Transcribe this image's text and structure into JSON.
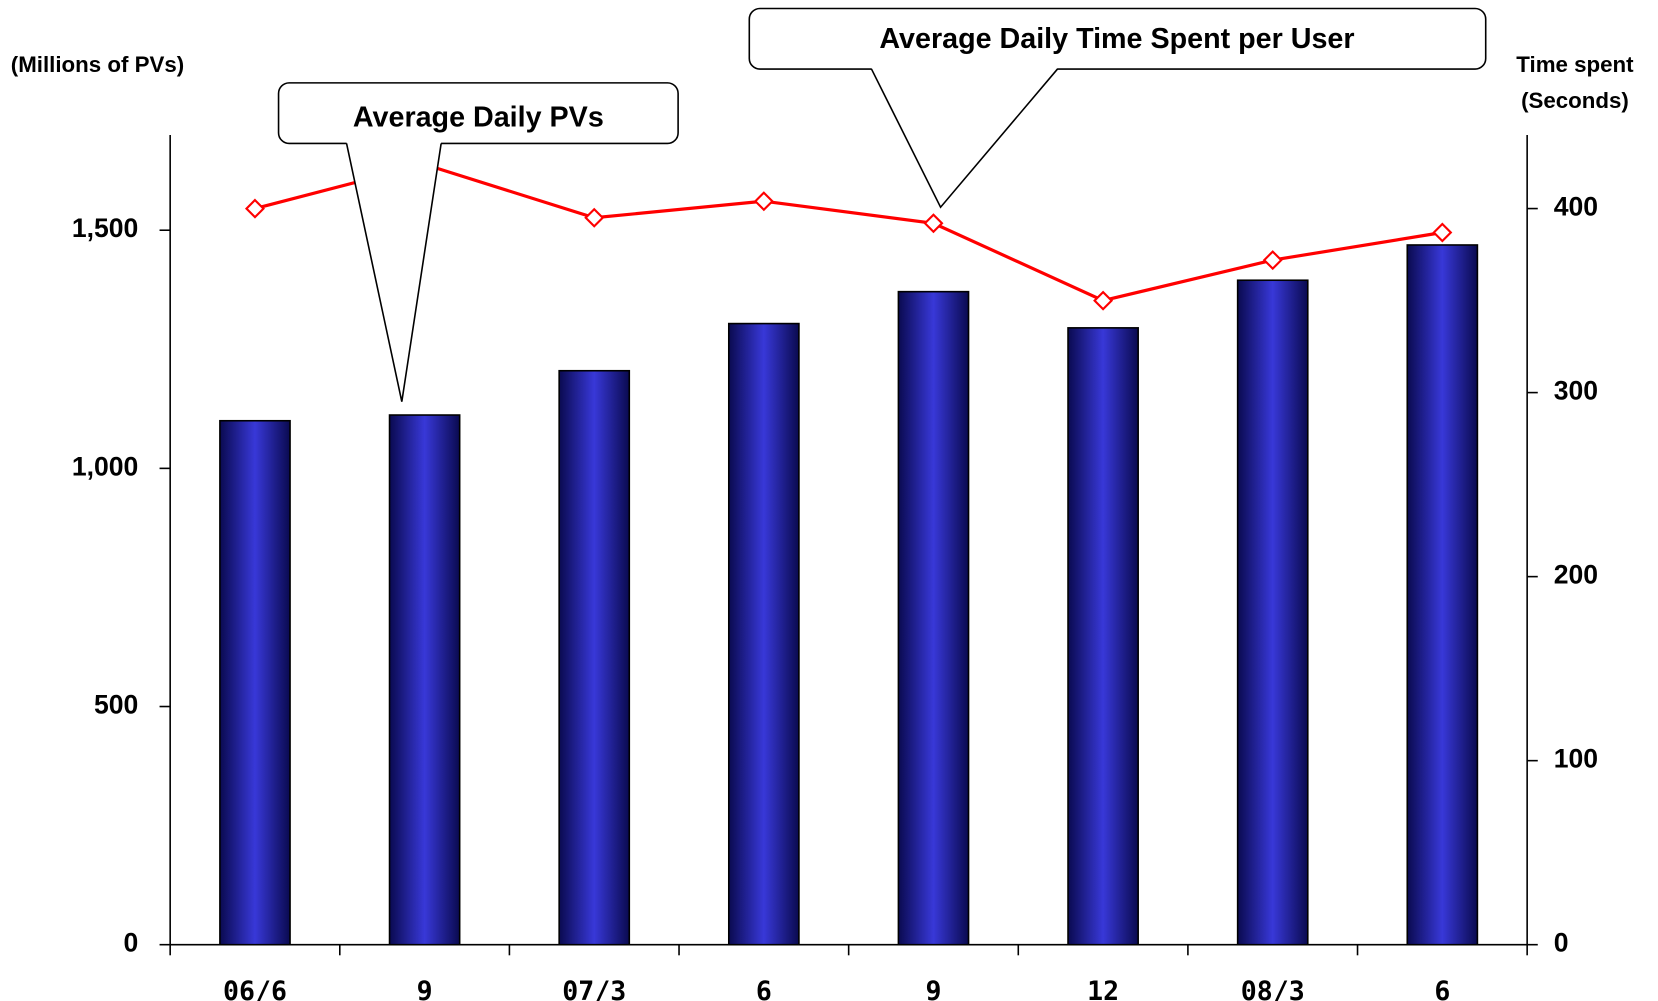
{
  "chart_data": {
    "type": "bar_line",
    "ylabel": "(Millions of PVs)",
    "y2label": [
      "Time spent",
      "(Seconds)"
    ],
    "annotations": [
      {
        "text": "Average Daily PVs"
      },
      {
        "text": "Average Daily Time Spent per User"
      }
    ],
    "categories": [
      "06/6",
      "9",
      "07/3",
      "6",
      "9",
      "12",
      "08/3",
      "6"
    ],
    "series": [
      {
        "name": "Average Daily PVs",
        "type": "bar",
        "color": "#3333cc",
        "values": [
          1100,
          1112,
          1205,
          1304,
          1371,
          1295,
          1395,
          1469
        ]
      },
      {
        "name": "Average Daily Time Spent per User",
        "type": "line",
        "axis": "y2",
        "color": "#ff0000",
        "values": [
          400,
          424,
          395,
          404,
          392,
          350,
          372,
          387
        ]
      }
    ],
    "ylim": [
      0,
      1700
    ],
    "yticks": [
      0,
      500,
      {
        "value": 1000,
        "label": "1,000"
      },
      {
        "value": 1500,
        "label": "1,500"
      }
    ],
    "y2lim": [
      0,
      440
    ],
    "y2ticks": [
      0,
      100,
      200,
      300,
      400
    ]
  }
}
